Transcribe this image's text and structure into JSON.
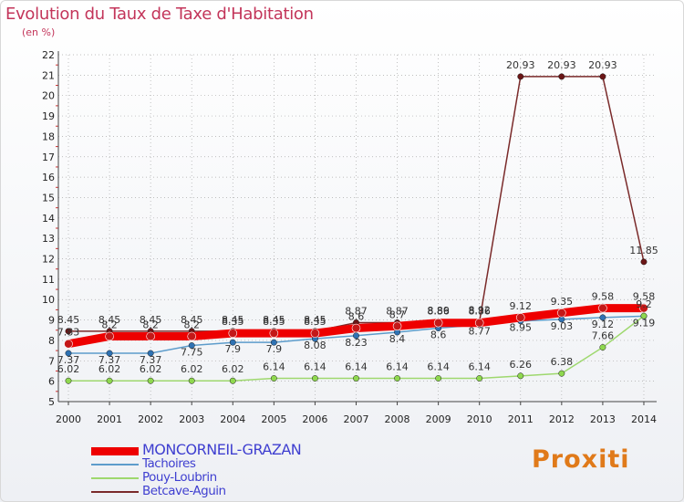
{
  "title": "Evolution du Taux de Taxe d'Habitation",
  "subtitle": "(en %)",
  "brand": "Proxiti",
  "colors": {
    "title": "#c3355a",
    "grid": "#aaaaaa",
    "axis": "#444444"
  },
  "chart_data": {
    "type": "line",
    "title": "Evolution du Taux de Taxe d'Habitation",
    "ylabel": "(en %)",
    "xlabel": "",
    "grid": true,
    "ylim": [
      5,
      22
    ],
    "yticks": [
      5,
      6,
      7,
      8,
      9,
      10,
      11,
      12,
      13,
      14,
      15,
      16,
      17,
      18,
      19,
      20,
      21,
      22
    ],
    "categories": [
      "2000",
      "2001",
      "2002",
      "2003",
      "2004",
      "2005",
      "2006",
      "2007",
      "2008",
      "2009",
      "2010",
      "2011",
      "2012",
      "2013",
      "2014"
    ],
    "legend_position": "bottom-left",
    "series": [
      {
        "name": "MONCORNEIL-GRAZAN",
        "color": "#ee0000",
        "marker": "#c41818",
        "width": 9,
        "values": [
          7.83,
          8.2,
          8.2,
          8.2,
          8.35,
          8.35,
          8.35,
          8.6,
          8.7,
          8.86,
          8.86,
          9.12,
          9.35,
          9.58,
          9.58
        ],
        "labels": [
          "7.83",
          "8.2",
          "8.2",
          "8.2",
          "8.35",
          "8.35",
          "8.35",
          "8.6",
          "8.7",
          "8.86",
          "8.86",
          "9.12",
          "9.35",
          "9.58",
          "9.58"
        ],
        "label_side": "top"
      },
      {
        "name": "Tachoires",
        "color": "#5d9ccb",
        "marker": "#2f72b3",
        "width": 1.5,
        "values": [
          7.37,
          7.37,
          7.37,
          7.75,
          7.9,
          7.9,
          8.08,
          8.23,
          8.4,
          8.6,
          8.77,
          8.95,
          9.03,
          9.12,
          9.19
        ],
        "labels": [
          "7.37",
          "7.37",
          "7.37",
          "7.75",
          "7.9",
          "7.9",
          "8.08",
          "8.23",
          "8.4",
          "8.6",
          "8.77",
          "8.95",
          "9.03",
          "9.12",
          "9.19"
        ],
        "label_side": "top"
      },
      {
        "name": "Pouy-Loubrin",
        "color": "#9ed86e",
        "marker": "#8fd84f",
        "width": 1.5,
        "values": [
          6.02,
          6.02,
          6.02,
          6.02,
          6.02,
          6.14,
          6.14,
          6.14,
          6.14,
          6.14,
          6.14,
          6.26,
          6.38,
          7.66,
          9.2
        ],
        "labels": [
          "6.02",
          "6.02",
          "6.02",
          "6.02",
          "6.02",
          "6.14",
          "6.14",
          "6.14",
          "6.14",
          "6.14",
          "6.14",
          "6.26",
          "6.38",
          "7.66",
          "9.2"
        ],
        "label_side": "top"
      },
      {
        "name": "Betcave-Aguin",
        "color": "#7a2a2a",
        "marker": "#6b1616",
        "width": 1.5,
        "values": [
          8.45,
          8.45,
          8.45,
          8.45,
          8.45,
          8.45,
          8.45,
          8.87,
          8.87,
          8.89,
          8.92,
          20.93,
          20.93,
          20.93,
          11.85
        ],
        "labels": [
          "8.45",
          "8.45",
          "8.45",
          "8.45",
          "8.45",
          "8.45",
          "8.45",
          "8.87",
          "8.87",
          "8.89",
          "8.92",
          "20.93",
          "20.93",
          "20.93",
          "11.85"
        ],
        "label_side": "top"
      }
    ]
  }
}
